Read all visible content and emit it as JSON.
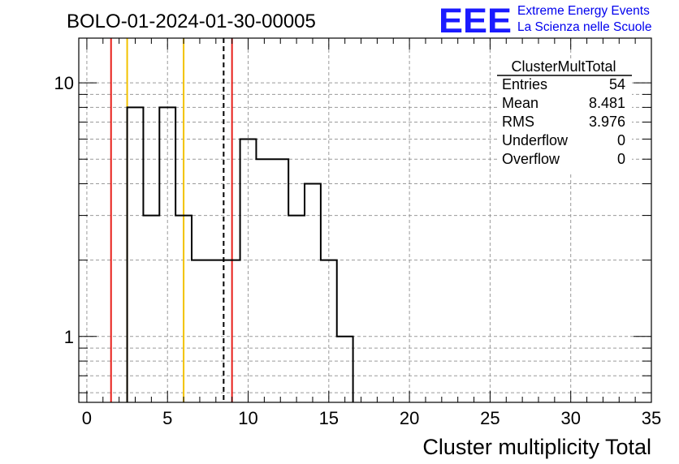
{
  "chart_data": {
    "type": "histogram",
    "title": "BOLO-01-2024-01-30-00005",
    "xlabel": "Cluster multiplicity Total",
    "ylabel": "",
    "xlim": [
      -0.5,
      35
    ],
    "ylim": [
      0.55,
      15
    ],
    "yscale": "log",
    "grid": true,
    "x_ticks": [
      0,
      5,
      10,
      15,
      20,
      25,
      30,
      35
    ],
    "y_tick_labels": [
      {
        "value": 1,
        "label": "1"
      },
      {
        "value": 10,
        "label": "10"
      }
    ],
    "bins": [
      {
        "low": 2.5,
        "high": 3.5,
        "count": 8
      },
      {
        "low": 3.5,
        "high": 4.5,
        "count": 3
      },
      {
        "low": 4.5,
        "high": 5.5,
        "count": 8
      },
      {
        "low": 5.5,
        "high": 6.5,
        "count": 3
      },
      {
        "low": 6.5,
        "high": 7.5,
        "count": 2
      },
      {
        "low": 7.5,
        "high": 8.5,
        "count": 2
      },
      {
        "low": 8.5,
        "high": 9.5,
        "count": 2
      },
      {
        "low": 9.5,
        "high": 10.5,
        "count": 6
      },
      {
        "low": 10.5,
        "high": 11.5,
        "count": 5
      },
      {
        "low": 11.5,
        "high": 12.5,
        "count": 5
      },
      {
        "low": 12.5,
        "high": 13.5,
        "count": 3
      },
      {
        "low": 13.5,
        "high": 14.5,
        "count": 4
      },
      {
        "low": 14.5,
        "high": 15.5,
        "count": 2
      },
      {
        "low": 15.5,
        "high": 16.5,
        "count": 1
      }
    ],
    "markers": [
      {
        "x": 1.5,
        "color": "#e8201b",
        "style": "solid"
      },
      {
        "x": 2.5,
        "color": "#f2c200",
        "style": "solid"
      },
      {
        "x": 6.0,
        "color": "#f2c200",
        "style": "solid"
      },
      {
        "x": 8.481,
        "color": "#000000",
        "style": "dashed"
      },
      {
        "x": 9.0,
        "color": "#e8201b",
        "style": "solid"
      }
    ],
    "stats": {
      "title": "ClusterMultTotal",
      "rows": [
        {
          "label": "Entries",
          "value": "54"
        },
        {
          "label": "Mean",
          "value": "8.481"
        },
        {
          "label": "RMS",
          "value": "3.976"
        },
        {
          "label": "Underflow",
          "value": "0"
        },
        {
          "label": "Overflow",
          "value": "0"
        }
      ]
    }
  },
  "logo": {
    "mark": "EEE",
    "line1": "Extreme Energy Events",
    "line2": "La Scienza nelle Scuole"
  }
}
